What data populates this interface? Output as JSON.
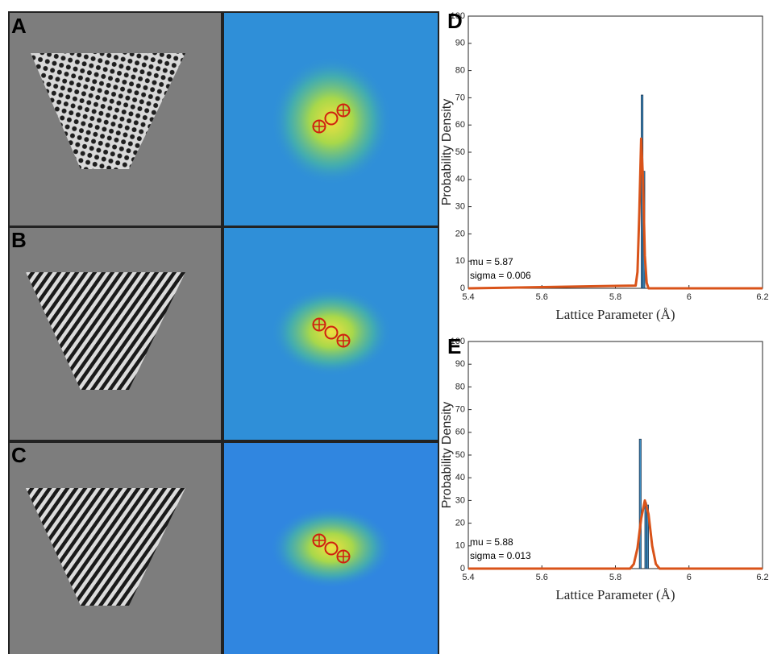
{
  "panels": [
    {
      "label": "A"
    },
    {
      "label": "B"
    },
    {
      "label": "C"
    }
  ],
  "chart_data": [
    {
      "type": "histogram",
      "label": "D",
      "xlabel": "Lattice Parameter (Å)",
      "ylabel": "Probability Density",
      "bins": [
        5.87,
        5.875,
        5.88
      ],
      "counts": [
        71,
        43
      ],
      "color": "#3f8fc4",
      "curve": {
        "x": [
          5.4,
          5.855,
          5.86,
          5.865,
          5.87,
          5.875,
          5.88,
          5.885,
          5.89,
          6.2
        ],
        "values": [
          0,
          1,
          6,
          28,
          55,
          40,
          12,
          2,
          0,
          0
        ],
        "color": "#d95319"
      },
      "annotations": [
        "mu = 5.87",
        "sigma = 0.006"
      ],
      "xlim": [
        5.4,
        6.2
      ],
      "xticks": [
        5.4,
        5.6,
        5.8,
        6,
        6.2
      ],
      "ylim": [
        0,
        100
      ],
      "yticks": [
        0,
        10,
        20,
        30,
        40,
        50,
        60,
        70,
        80,
        90,
        100
      ]
    },
    {
      "type": "histogram",
      "label": "E",
      "xlabel": "Lattice Parameter (Å)",
      "ylabel": "Probability Density",
      "bins": [
        5.865,
        5.87,
        5.875,
        5.88,
        5.885,
        5.89
      ],
      "counts": [
        57,
        0,
        0,
        29,
        28
      ],
      "color": "#3f8fc4",
      "curve": {
        "x": [
          5.4,
          5.84,
          5.85,
          5.86,
          5.87,
          5.88,
          5.89,
          5.9,
          5.91,
          5.92,
          6.2
        ],
        "values": [
          0,
          0,
          2,
          9,
          22,
          30,
          24,
          10,
          2,
          0,
          0
        ],
        "color": "#d95319"
      },
      "annotations": [
        "mu = 5.88",
        "sigma = 0.013"
      ],
      "xlim": [
        5.4,
        6.2
      ],
      "xticks": [
        5.4,
        5.6,
        5.8,
        6,
        6.2
      ],
      "ylim": [
        0,
        100
      ],
      "yticks": [
        0,
        10,
        20,
        30,
        40,
        50,
        60,
        70,
        80,
        90,
        100
      ]
    }
  ]
}
